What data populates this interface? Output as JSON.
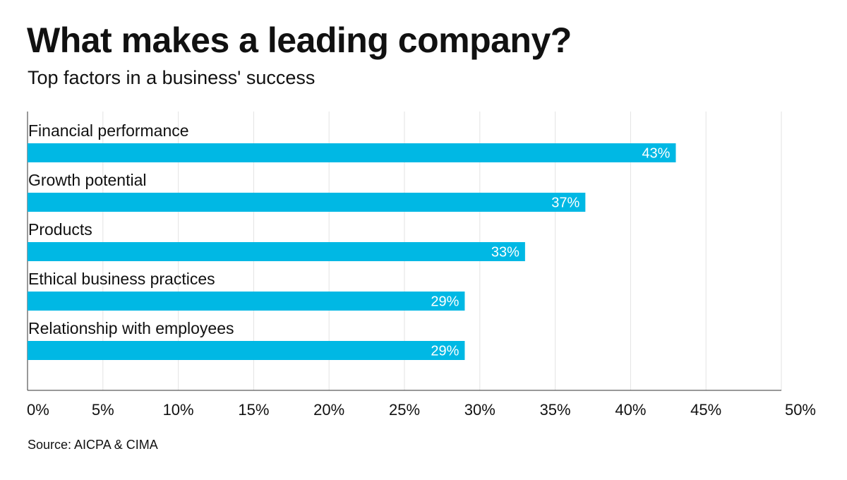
{
  "header": {
    "title": "What makes a leading company?",
    "subtitle": "Top factors in a business' success"
  },
  "footer": {
    "source": "Source: AICPA & CIMA"
  },
  "colors": {
    "bar": "#00b8e4",
    "grid": "#e3e3e3",
    "axis": "#333333",
    "bar_label": "#ffffff"
  },
  "chart_data": {
    "type": "bar",
    "orientation": "horizontal",
    "title": "What makes a leading company?",
    "subtitle": "Top factors in a business' success",
    "categories": [
      "Financial performance",
      "Growth potential",
      "Products",
      "Ethical business practices",
      "Relationship with employees"
    ],
    "values": [
      43,
      37,
      33,
      29,
      29
    ],
    "value_labels": [
      "43%",
      "37%",
      "33%",
      "29%",
      "29%"
    ],
    "xlim": [
      0,
      50
    ],
    "xticks": [
      0,
      5,
      10,
      15,
      20,
      25,
      30,
      35,
      40,
      45,
      50
    ],
    "xtick_labels": [
      "0%",
      "5%",
      "10%",
      "15%",
      "20%",
      "25%",
      "30%",
      "35%",
      "40%",
      "45%",
      "50%"
    ],
    "grid": true,
    "legend": "none"
  }
}
